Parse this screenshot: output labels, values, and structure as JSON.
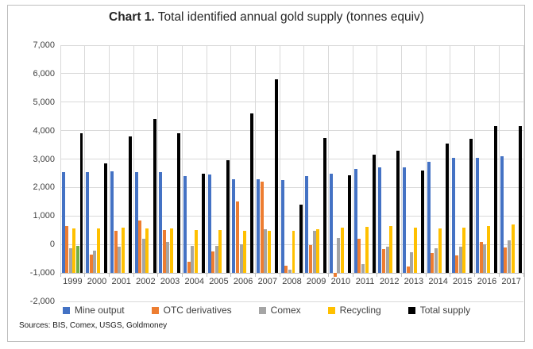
{
  "title": {
    "prefix": "Chart 1.",
    "rest": " Total identified annual gold supply (tonnes equiv)"
  },
  "sources_note": "Sources: BIS, Comex, USGS, Goldmoney",
  "chart_data": {
    "type": "bar",
    "title": "Chart 1. Total identified annual gold supply (tonnes equiv)",
    "xlabel": "",
    "ylabel": "tonnes equiv",
    "ylim": [
      -2000,
      7000
    ],
    "ytick_step": 1000,
    "ytick_labels": [
      "7,000",
      "6,000",
      "5,000",
      "4,000",
      "3,000",
      "2,000",
      "1,000",
      "0",
      "-1,000",
      "-2,000"
    ],
    "bar_base": -1000,
    "axis_crosses_at": -1000,
    "grid": true,
    "legend_position": "bottom",
    "categories": [
      "1999",
      "2000",
      "2001",
      "2002",
      "2003",
      "2004",
      "2005",
      "2006",
      "2007",
      "2008",
      "2009",
      "2010",
      "2011",
      "2012",
      "2013",
      "2014",
      "2015",
      "2016",
      "2017"
    ],
    "series": [
      {
        "name": "Mine output",
        "color": "#4472C4",
        "in_legend": true,
        "values": [
          2550,
          2550,
          2570,
          2550,
          2550,
          2400,
          2450,
          2300,
          2300,
          2250,
          2400,
          2500,
          2650,
          2700,
          2700,
          2900,
          3050,
          3050,
          3100
        ]
      },
      {
        "name": "OTC derivatives",
        "color": "#ED7D31",
        "in_legend": true,
        "values": [
          650,
          -350,
          480,
          850,
          510,
          -600,
          -250,
          1520,
          2200,
          -750,
          -30,
          -1150,
          200,
          -150,
          -780,
          -290,
          -370,
          100,
          -100
        ]
      },
      {
        "name": "Comex",
        "color": "#A5A5A5",
        "in_legend": true,
        "values": [
          -120,
          -230,
          -90,
          200,
          90,
          -40,
          -60,
          0,
          540,
          -880,
          490,
          220,
          -680,
          -90,
          -280,
          -130,
          -80,
          0,
          150
        ]
      },
      {
        "name": "Recycling",
        "color": "#FFC000",
        "in_legend": true,
        "values": [
          550,
          560,
          590,
          570,
          570,
          520,
          520,
          480,
          490,
          490,
          540,
          580,
          620,
          640,
          600,
          550,
          590,
          640,
          700
        ]
      },
      {
        "name": "unlabeled-green",
        "color": "#70AD47",
        "in_legend": false,
        "values": [
          -50,
          null,
          null,
          null,
          null,
          null,
          null,
          null,
          null,
          null,
          null,
          null,
          null,
          null,
          null,
          null,
          null,
          null,
          null
        ]
      },
      {
        "name": "Total supply",
        "color": "#000000",
        "in_legend": true,
        "values": [
          3900,
          2850,
          3800,
          4400,
          3900,
          2500,
          2950,
          4600,
          5800,
          1400,
          3750,
          2430,
          3150,
          3300,
          2600,
          3550,
          3700,
          4150,
          4150
        ]
      }
    ]
  }
}
